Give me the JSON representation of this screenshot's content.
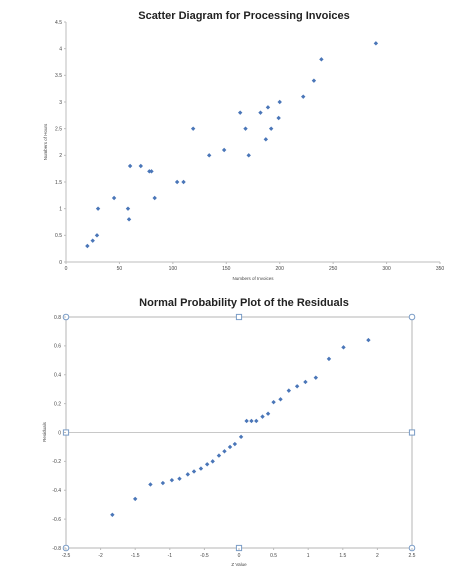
{
  "chart_data": [
    {
      "type": "scatter",
      "title": "Scatter Diagram for Processing Invoices",
      "xlabel": "Numbers of Invoices",
      "ylabel": "Numbers of Hours",
      "xlim": [
        0,
        350
      ],
      "ylim": [
        0,
        4.5
      ],
      "xticks": [
        "0",
        "50",
        "100",
        "150",
        "200",
        "250",
        "300",
        "350"
      ],
      "yticks": [
        "0",
        "0.5",
        "1",
        "1.5",
        "2",
        "2.5",
        "3",
        "3.5",
        "4",
        "4.5"
      ],
      "grid": false,
      "color": "#4a76b8",
      "points": [
        {
          "x": 20,
          "y": 0.3
        },
        {
          "x": 25,
          "y": 0.4
        },
        {
          "x": 29,
          "y": 0.5
        },
        {
          "x": 30,
          "y": 1.0
        },
        {
          "x": 45,
          "y": 1.2
        },
        {
          "x": 58,
          "y": 1.0
        },
        {
          "x": 59,
          "y": 0.8
        },
        {
          "x": 60,
          "y": 1.8
        },
        {
          "x": 70,
          "y": 1.8
        },
        {
          "x": 78,
          "y": 1.7
        },
        {
          "x": 80,
          "y": 1.7
        },
        {
          "x": 83,
          "y": 1.2
        },
        {
          "x": 104,
          "y": 1.5
        },
        {
          "x": 110,
          "y": 1.5
        },
        {
          "x": 119,
          "y": 2.5
        },
        {
          "x": 134,
          "y": 2.0
        },
        {
          "x": 148,
          "y": 2.1
        },
        {
          "x": 163,
          "y": 2.8
        },
        {
          "x": 168,
          "y": 2.5
        },
        {
          "x": 171,
          "y": 2.0
        },
        {
          "x": 182,
          "y": 2.8
        },
        {
          "x": 187,
          "y": 2.3
        },
        {
          "x": 189,
          "y": 2.9
        },
        {
          "x": 192,
          "y": 2.5
        },
        {
          "x": 199,
          "y": 2.7
        },
        {
          "x": 200,
          "y": 3.0
        },
        {
          "x": 222,
          "y": 3.1
        },
        {
          "x": 232,
          "y": 3.4
        },
        {
          "x": 239,
          "y": 3.8
        },
        {
          "x": 290,
          "y": 4.1
        }
      ]
    },
    {
      "type": "scatter",
      "title": "Normal Probability Plot of the Residuals",
      "xlabel": "Z Value",
      "ylabel": "Residuals",
      "xlim": [
        -2.5,
        2.5
      ],
      "ylim": [
        -0.8,
        0.8
      ],
      "xticks": [
        "-2.5",
        "-2",
        "-1.5",
        "-1",
        "-0.5",
        "0",
        "0.5",
        "1",
        "1.5",
        "2",
        "2.5"
      ],
      "yticks": [
        "-0.8",
        "-0.6",
        "-0.4",
        "-0.2",
        "0",
        "0.2",
        "0.4",
        "0.6",
        "0.8"
      ],
      "grid": false,
      "color": "#4a76b8",
      "points": [
        {
          "x": -1.83,
          "y": -0.57
        },
        {
          "x": -1.5,
          "y": -0.46
        },
        {
          "x": -1.28,
          "y": -0.36
        },
        {
          "x": -1.1,
          "y": -0.35
        },
        {
          "x": -0.97,
          "y": -0.33
        },
        {
          "x": -0.86,
          "y": -0.32
        },
        {
          "x": -0.74,
          "y": -0.29
        },
        {
          "x": -0.65,
          "y": -0.27
        },
        {
          "x": -0.55,
          "y": -0.25
        },
        {
          "x": -0.46,
          "y": -0.22
        },
        {
          "x": -0.38,
          "y": -0.2
        },
        {
          "x": -0.29,
          "y": -0.16
        },
        {
          "x": -0.21,
          "y": -0.13
        },
        {
          "x": -0.13,
          "y": -0.1
        },
        {
          "x": -0.06,
          "y": -0.08
        },
        {
          "x": 0.03,
          "y": -0.03
        },
        {
          "x": 0.11,
          "y": 0.08
        },
        {
          "x": 0.18,
          "y": 0.08
        },
        {
          "x": 0.25,
          "y": 0.08
        },
        {
          "x": 0.34,
          "y": 0.11
        },
        {
          "x": 0.42,
          "y": 0.13
        },
        {
          "x": 0.5,
          "y": 0.21
        },
        {
          "x": 0.6,
          "y": 0.23
        },
        {
          "x": 0.72,
          "y": 0.29
        },
        {
          "x": 0.84,
          "y": 0.32
        },
        {
          "x": 0.96,
          "y": 0.35
        },
        {
          "x": 1.11,
          "y": 0.38
        },
        {
          "x": 1.3,
          "y": 0.51
        },
        {
          "x": 1.51,
          "y": 0.59
        },
        {
          "x": 1.87,
          "y": 0.64
        }
      ]
    }
  ]
}
